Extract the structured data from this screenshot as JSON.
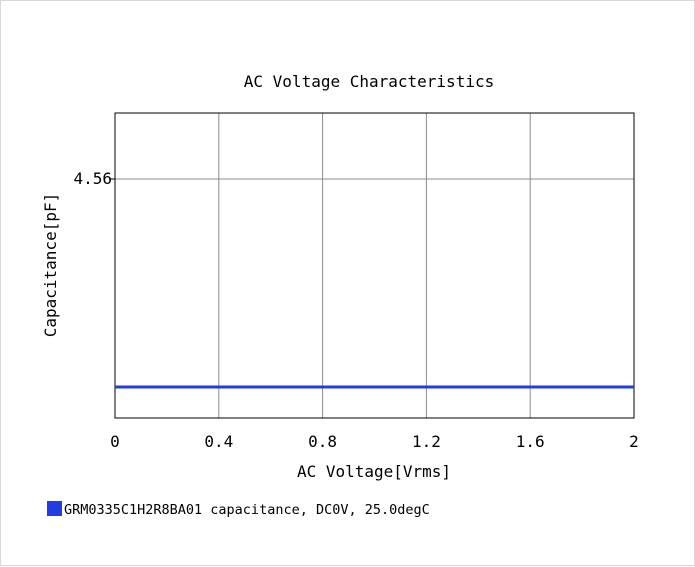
{
  "chart_data": {
    "type": "line",
    "title": "AC Voltage Characteristics",
    "xlabel": "AC Voltage[Vrms]",
    "ylabel": "Capacitance[pF]",
    "x_ticks": [
      "0",
      "0.4",
      "0.8",
      "1.2",
      "1.6",
      "2"
    ],
    "y_ticks": [
      "4.56"
    ],
    "xlim": [
      0,
      2
    ],
    "y_tick_value": 4.56,
    "grid": true,
    "legend_position": "bottom-left",
    "series": [
      {
        "name": "GRM0335C1H2R8BA01 capacitance, DC0V, 25.0degC",
        "color": "#1f3de0",
        "x": [
          0,
          2
        ],
        "y": [
          2.8,
          2.8
        ]
      }
    ]
  }
}
